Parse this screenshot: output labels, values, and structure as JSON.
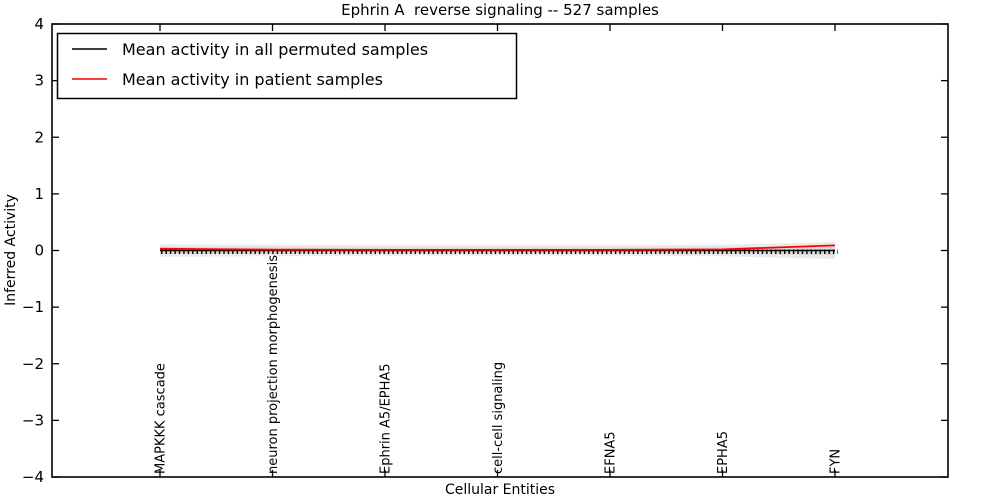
{
  "chart_data": {
    "type": "line",
    "title": "Ephrin A  reverse signaling -- 527 samples",
    "xlabel": "Cellular Entities",
    "ylabel": "Inferred Activity",
    "ylim": [
      -4,
      4
    ],
    "yticks": [
      4,
      3,
      2,
      1,
      0,
      -1,
      -2,
      -3,
      -4
    ],
    "grid": false,
    "legend_position": "upper left",
    "categories": [
      "MAPKKK cascade",
      "neuron projection morphogenesis",
      "Ephrin A5/EPHA5",
      "cell-cell signaling",
      "EFNA5",
      "EPHA5",
      "FYN"
    ],
    "series": [
      {
        "name": "Mean activity in all permuted samples",
        "color": "#000000",
        "values": [
          0,
          0,
          0,
          0,
          0,
          0,
          0
        ],
        "marker": "vertical-tick"
      },
      {
        "name": "Mean activity in patient samples",
        "color": "#ff0000",
        "values": [
          0.03,
          0.015,
          0.01,
          0.01,
          0.01,
          0.02,
          0.09
        ],
        "marker": "none"
      }
    ],
    "band": {
      "name": "permuted-samples-std-band",
      "color": "#eaeaea",
      "inner_color": "#d9d9d9",
      "upper": [
        0.11,
        0.1,
        0.09,
        0.09,
        0.09,
        0.1,
        0.15
      ],
      "lower": [
        -0.11,
        -0.1,
        -0.09,
        -0.09,
        -0.09,
        -0.1,
        -0.15
      ]
    },
    "frame_color": "#000000",
    "background_color": "#ffffff"
  }
}
